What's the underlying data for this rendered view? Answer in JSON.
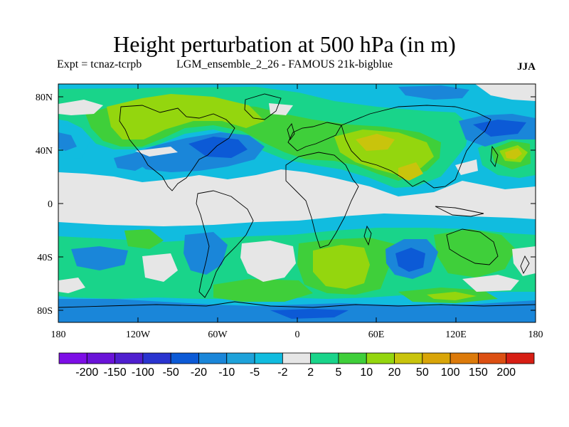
{
  "title": "Height perturbation at 500 hPa (in m)",
  "expt_label": "Expt = tcnaz-tcrpb",
  "ensemble_label": "LGM_ensemble_2_26 - FAMOUS 21k-bigblue",
  "season": "JJA",
  "lat_ticks": [
    "80N",
    "40N",
    "0",
    "40S",
    "80S"
  ],
  "lon_ticks": [
    "180",
    "120W",
    "60W",
    "0",
    "60E",
    "120E",
    "180"
  ],
  "colorbar": {
    "colors": [
      "#7d0ee6",
      "#6a13d8",
      "#4f1fcf",
      "#2a34cf",
      "#0c5ad6",
      "#1a86d9",
      "#1ea2da",
      "#11bcdf",
      "#e6e6e6",
      "#19d48a",
      "#3fcf3a",
      "#94d60e",
      "#c9c40c",
      "#d9a508",
      "#dc7a0a",
      "#dc4f12",
      "#d71e14"
    ],
    "labels": [
      "-200",
      "-150",
      "-100",
      "-50",
      "-20",
      "-10",
      "-5",
      "-2",
      "2",
      "5",
      "10",
      "20",
      "50",
      "100",
      "150",
      "200"
    ]
  },
  "map_colors": {
    "background": "#e6e6e6",
    "coast": "#000000"
  }
}
